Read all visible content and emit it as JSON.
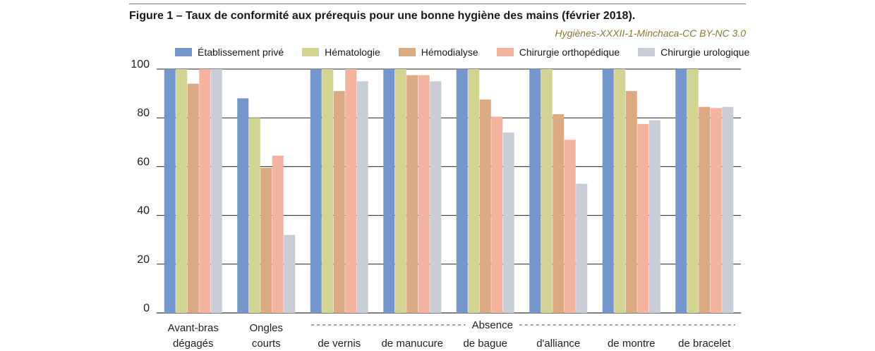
{
  "title": "Figure 1 – Taux de conformité aux prérequis pour une bonne hygiène des mains (février 2018).",
  "credit": "Hygiènes-XXXII-1-Minchaca-CC BY-NC 3.0",
  "chart_data": {
    "type": "bar",
    "categories": [
      [
        "Avant-bras",
        "dégagés"
      ],
      [
        "Ongles",
        "courts"
      ],
      [
        "de vernis"
      ],
      [
        "de manucure"
      ],
      [
        "de bague"
      ],
      [
        "d'alliance"
      ],
      [
        "de montre"
      ],
      [
        "de bracelet"
      ]
    ],
    "group_label": "Absence",
    "series": [
      {
        "name": "Établissement privé",
        "color": "#7496cc",
        "values": [
          100,
          88,
          100,
          100,
          100,
          100,
          100,
          100
        ]
      },
      {
        "name": "Hématologie",
        "color": "#d2d494",
        "values": [
          100,
          80,
          100,
          100,
          100,
          100,
          100,
          100
        ]
      },
      {
        "name": "Hémodialyse",
        "color": "#dcaa82",
        "values": [
          94,
          59.5,
          91,
          97.5,
          87.5,
          81.5,
          91,
          84.5
        ]
      },
      {
        "name": "Chirurgie orthopédique",
        "color": "#f4b39e",
        "values": [
          100,
          64.5,
          100,
          97.5,
          80.5,
          71,
          77.5,
          84
        ]
      },
      {
        "name": "Chirurgie urologique",
        "color": "#c9cdd6",
        "values": [
          100,
          32,
          95,
          95,
          74,
          53,
          79,
          84.5
        ]
      }
    ],
    "yticks": [
      0,
      20,
      40,
      60,
      80,
      100
    ],
    "ylim": [
      0,
      100
    ],
    "grid": true,
    "legend_position": "top"
  }
}
